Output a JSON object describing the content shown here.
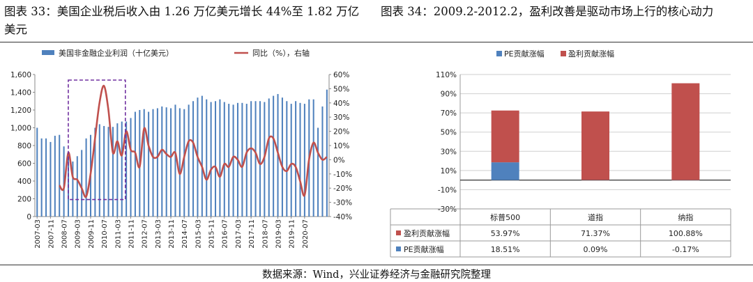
{
  "titles": {
    "left": "图表 33：美国企业税后收入由 1.26 万亿美元增长 44%至 1.82 万亿美元",
    "right": "图表 34：2009.2-2012.2，盈利改善是驱动市场上行的核心动力"
  },
  "source": "数据来源：Wind，兴业证券经济与金融研究院整理",
  "chart_data": [
    {
      "type": "bar",
      "legend": [
        "美国非金融企业利润（十亿美元）",
        "同比（%），右轴"
      ],
      "series": [
        {
          "name": "美国非金融企业利润（十亿美元）",
          "kind": "bar",
          "axis": "left",
          "start_quarter": "2007-03",
          "values": [
            1000,
            880,
            880,
            840,
            910,
            920,
            790,
            690,
            620,
            680,
            750,
            880,
            920,
            1000,
            1040,
            1020,
            1010,
            1010,
            1050,
            1070,
            1070,
            1110,
            1180,
            1200,
            1210,
            1180,
            1210,
            1220,
            1240,
            1230,
            1220,
            1260,
            1220,
            1210,
            1260,
            1300,
            1340,
            1360,
            1320,
            1290,
            1300,
            1320,
            1290,
            1270,
            1260,
            1280,
            1280,
            1270,
            1300,
            1300,
            1300,
            1290,
            1330,
            1360,
            1380,
            1340,
            1300,
            1270,
            1300,
            1280,
            1270,
            1320,
            1320,
            1000,
            1240,
            1430
          ]
        },
        {
          "name": "同比（%），右轴",
          "kind": "line",
          "axis": "right",
          "values": [
            null,
            null,
            null,
            null,
            null,
            -18,
            -20,
            5,
            -12,
            -14,
            -20,
            -26,
            -10,
            15,
            40,
            52,
            35,
            5,
            13,
            3,
            20,
            7,
            5,
            -5,
            22,
            10,
            2,
            2,
            7,
            4,
            2,
            5,
            -10,
            2,
            13,
            12,
            2,
            -5,
            -14,
            -7,
            -5,
            -12,
            -3,
            -5,
            2,
            0,
            -5,
            5,
            8,
            5,
            -3,
            2,
            15,
            15,
            5,
            -5,
            -8,
            -3,
            -5,
            -15,
            -25,
            0,
            12,
            5,
            0,
            2
          ]
        }
      ],
      "x_tick_labels": [
        "2007-03",
        "2007-11",
        "2008-07",
        "2009-03",
        "2009-11",
        "2010-07",
        "2011-03",
        "2011-11",
        "2012-07",
        "2013-03",
        "2013-11",
        "2014-07",
        "2015-03",
        "2015-11",
        "2016-07",
        "2017-03",
        "2017-11",
        "2018-07",
        "2019-03",
        "2019-11",
        "2020-07"
      ],
      "y_left": {
        "min": 0,
        "max": 1600,
        "ticks": [
          "0",
          "200",
          "400",
          "600",
          "800",
          "1,000",
          "1,200",
          "1,400",
          "1,600"
        ]
      },
      "y_right": {
        "min": -40,
        "max": 60,
        "ticks": [
          "-40%",
          "-30%",
          "-20%",
          "-10%",
          "0%",
          "10%",
          "20%",
          "30%",
          "40%",
          "50%",
          "60%"
        ]
      },
      "colors": {
        "bar": "#4f81bd",
        "line": "#c0504d",
        "highlight_box": "#7030a0"
      }
    },
    {
      "type": "stacked-bar",
      "legend": [
        "PE贡献涨幅",
        "盈利贡献涨幅"
      ],
      "categories": [
        "标普500",
        "道指",
        "纳指"
      ],
      "series": [
        {
          "name": "PE贡献涨幅",
          "values": [
            18.51,
            0.09,
            -0.17
          ],
          "labels": [
            "18.51%",
            "0.09%",
            "-0.17%"
          ],
          "color": "#4f81bd"
        },
        {
          "name": "盈利贡献涨幅",
          "values": [
            53.97,
            71.37,
            100.88
          ],
          "labels": [
            "53.97%",
            "71.37%",
            "100.88%"
          ],
          "color": "#c0504d"
        }
      ],
      "table_rows": [
        {
          "name": "盈利贡献涨幅",
          "labels": [
            "53.97%",
            "71.37%",
            "100.88%"
          ],
          "color": "#c0504d"
        },
        {
          "name": "PE贡献涨幅",
          "labels": [
            "18.51%",
            "0.09%",
            "-0.17%"
          ],
          "color": "#4f81bd"
        }
      ],
      "y_axis": {
        "min": -30,
        "max": 110,
        "ticks": [
          "-30%",
          "-10%",
          "10%",
          "30%",
          "50%",
          "70%",
          "90%",
          "110%"
        ]
      }
    }
  ]
}
